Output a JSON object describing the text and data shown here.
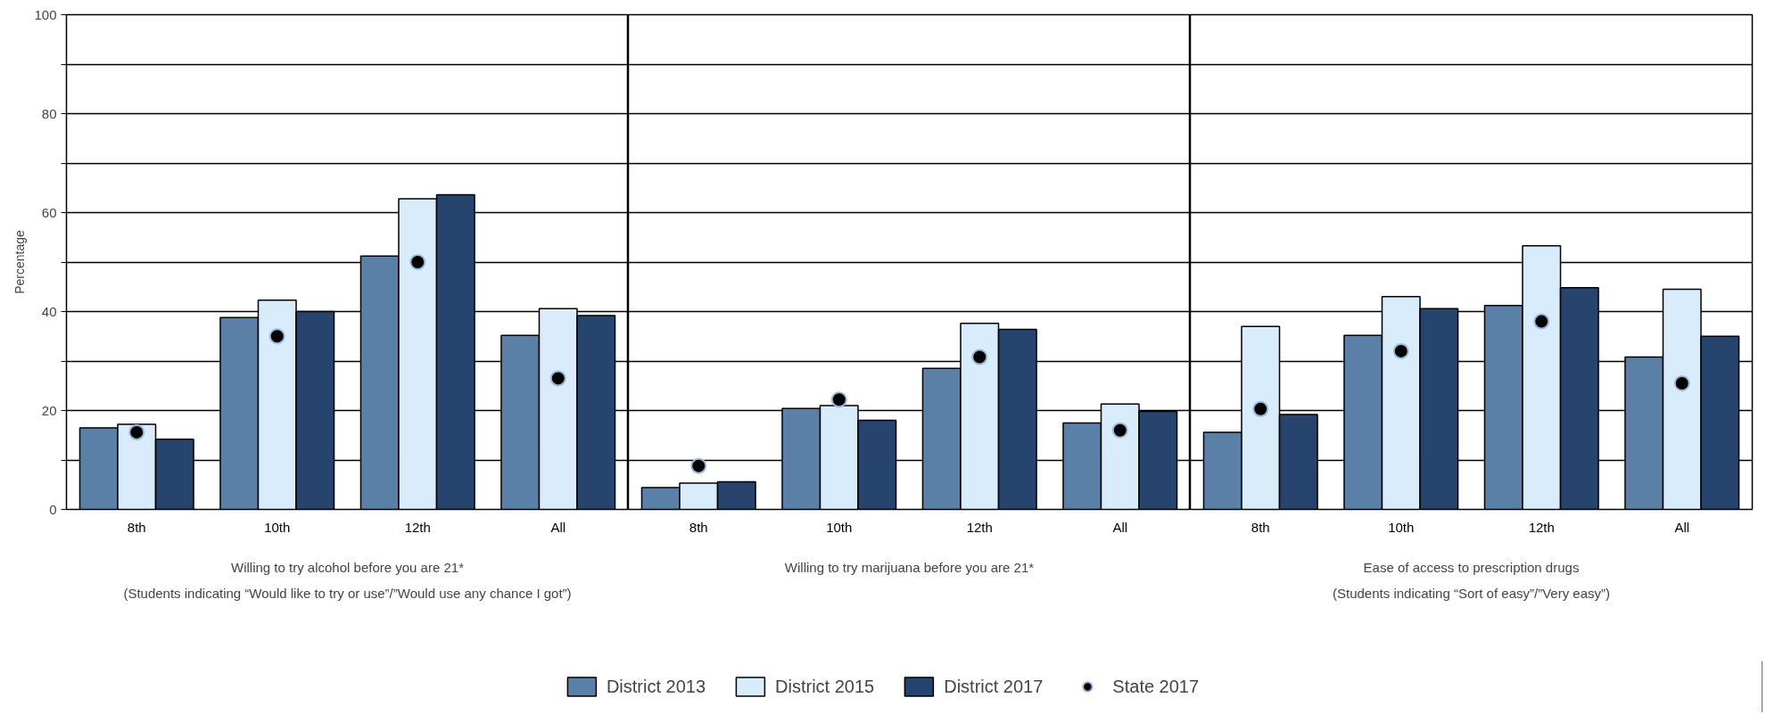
{
  "chart_data": [
    {
      "type": "bar",
      "ylabel": "Percentage",
      "xlabel": "Willing to try alcohol before you are 21*",
      "categories": [
        "8th",
        "10th",
        "12th",
        "All"
      ],
      "ylim": [
        0,
        100
      ],
      "yticks": [
        0,
        {
          "value": 10,
          "label": null
        },
        20,
        {
          "value": 30,
          "label": null
        },
        40,
        {
          "value": 50,
          "label": null
        },
        60,
        {
          "value": 70,
          "label": null
        },
        80,
        {
          "value": 90,
          "label": null
        },
        100
      ],
      "grid": "y",
      "annotations": [
        "(Students indicating “Would like to try or use”/”Would use any chance I got”)"
      ],
      "series": [
        {
          "color": "#5b80a8",
          "values": [
            16.5,
            38.8,
            51.2,
            35.2
          ]
        },
        {
          "color": "#d9ecfb",
          "values": [
            17.2,
            42.3,
            62.8,
            40.6
          ]
        },
        {
          "color": "#26446e",
          "values": [
            14.2,
            40.0,
            63.6,
            39.2
          ]
        },
        {
          "type": "scatter",
          "marker": "circle",
          "color": "#000000",
          "x": [
            "8th",
            "10th",
            "12th",
            "All"
          ],
          "values": [
            15.6,
            35.0,
            50.0,
            26.5
          ]
        }
      ]
    },
    {
      "type": "bar",
      "xlabel": "Willing to try marijuana before you are 21*",
      "categories": [
        "8th",
        "10th",
        "12th",
        "All"
      ],
      "ylim": [
        0,
        100
      ],
      "yticks": [
        0,
        {
          "value": 10,
          "label": null
        },
        20,
        {
          "value": 30,
          "label": null
        },
        40,
        {
          "value": 50,
          "label": null
        },
        60,
        {
          "value": 70,
          "label": null
        },
        80,
        {
          "value": 90,
          "label": null
        },
        100
      ],
      "grid": "y",
      "tick_labels": "x",
      "legend": "bottom",
      "series": [
        {
          "name": "District 2013",
          "color": "#5b80a8",
          "values": [
            4.4,
            20.4,
            28.5,
            17.5
          ]
        },
        {
          "name": "District 2015",
          "color": "#d9ecfb",
          "values": [
            5.3,
            21.0,
            37.6,
            21.3
          ]
        },
        {
          "name": "District 2017",
          "color": "#26446e",
          "values": [
            5.6,
            18.0,
            36.4,
            19.8
          ]
        },
        {
          "name": "State 2017",
          "type": "scatter",
          "marker": "circle",
          "color": "#000000",
          "x": [
            "8th",
            "10th",
            "12th",
            "All"
          ],
          "values": [
            8.8,
            22.2,
            30.8,
            16.0
          ]
        }
      ]
    },
    {
      "type": "bar",
      "xlabel": "Ease of access to prescription drugs",
      "categories": [
        "8th",
        "10th",
        "12th",
        "All"
      ],
      "ylim": [
        0,
        100
      ],
      "yticks": [
        0,
        {
          "value": 10,
          "label": null
        },
        20,
        {
          "value": 30,
          "label": null
        },
        40,
        {
          "value": 50,
          "label": null
        },
        60,
        {
          "value": 70,
          "label": null
        },
        80,
        {
          "value": 90,
          "label": null
        },
        100
      ],
      "grid": "y",
      "tick_labels": "x",
      "annotations": [
        "(Students indicating “Sort of easy”/”Very easy”)"
      ],
      "series": [
        {
          "color": "#5b80a8",
          "values": [
            15.6,
            35.2,
            41.2,
            30.8
          ]
        },
        {
          "color": "#d9ecfb",
          "values": [
            37.0,
            43.0,
            53.3,
            44.5
          ]
        },
        {
          "color": "#26446e",
          "values": [
            19.2,
            40.6,
            44.8,
            35.0
          ]
        },
        {
          "type": "scatter",
          "marker": "circle",
          "color": "#000000",
          "x": [
            "8th",
            "10th",
            "12th",
            "All"
          ],
          "values": [
            20.3,
            32.0,
            38.0,
            25.5
          ]
        }
      ]
    }
  ]
}
